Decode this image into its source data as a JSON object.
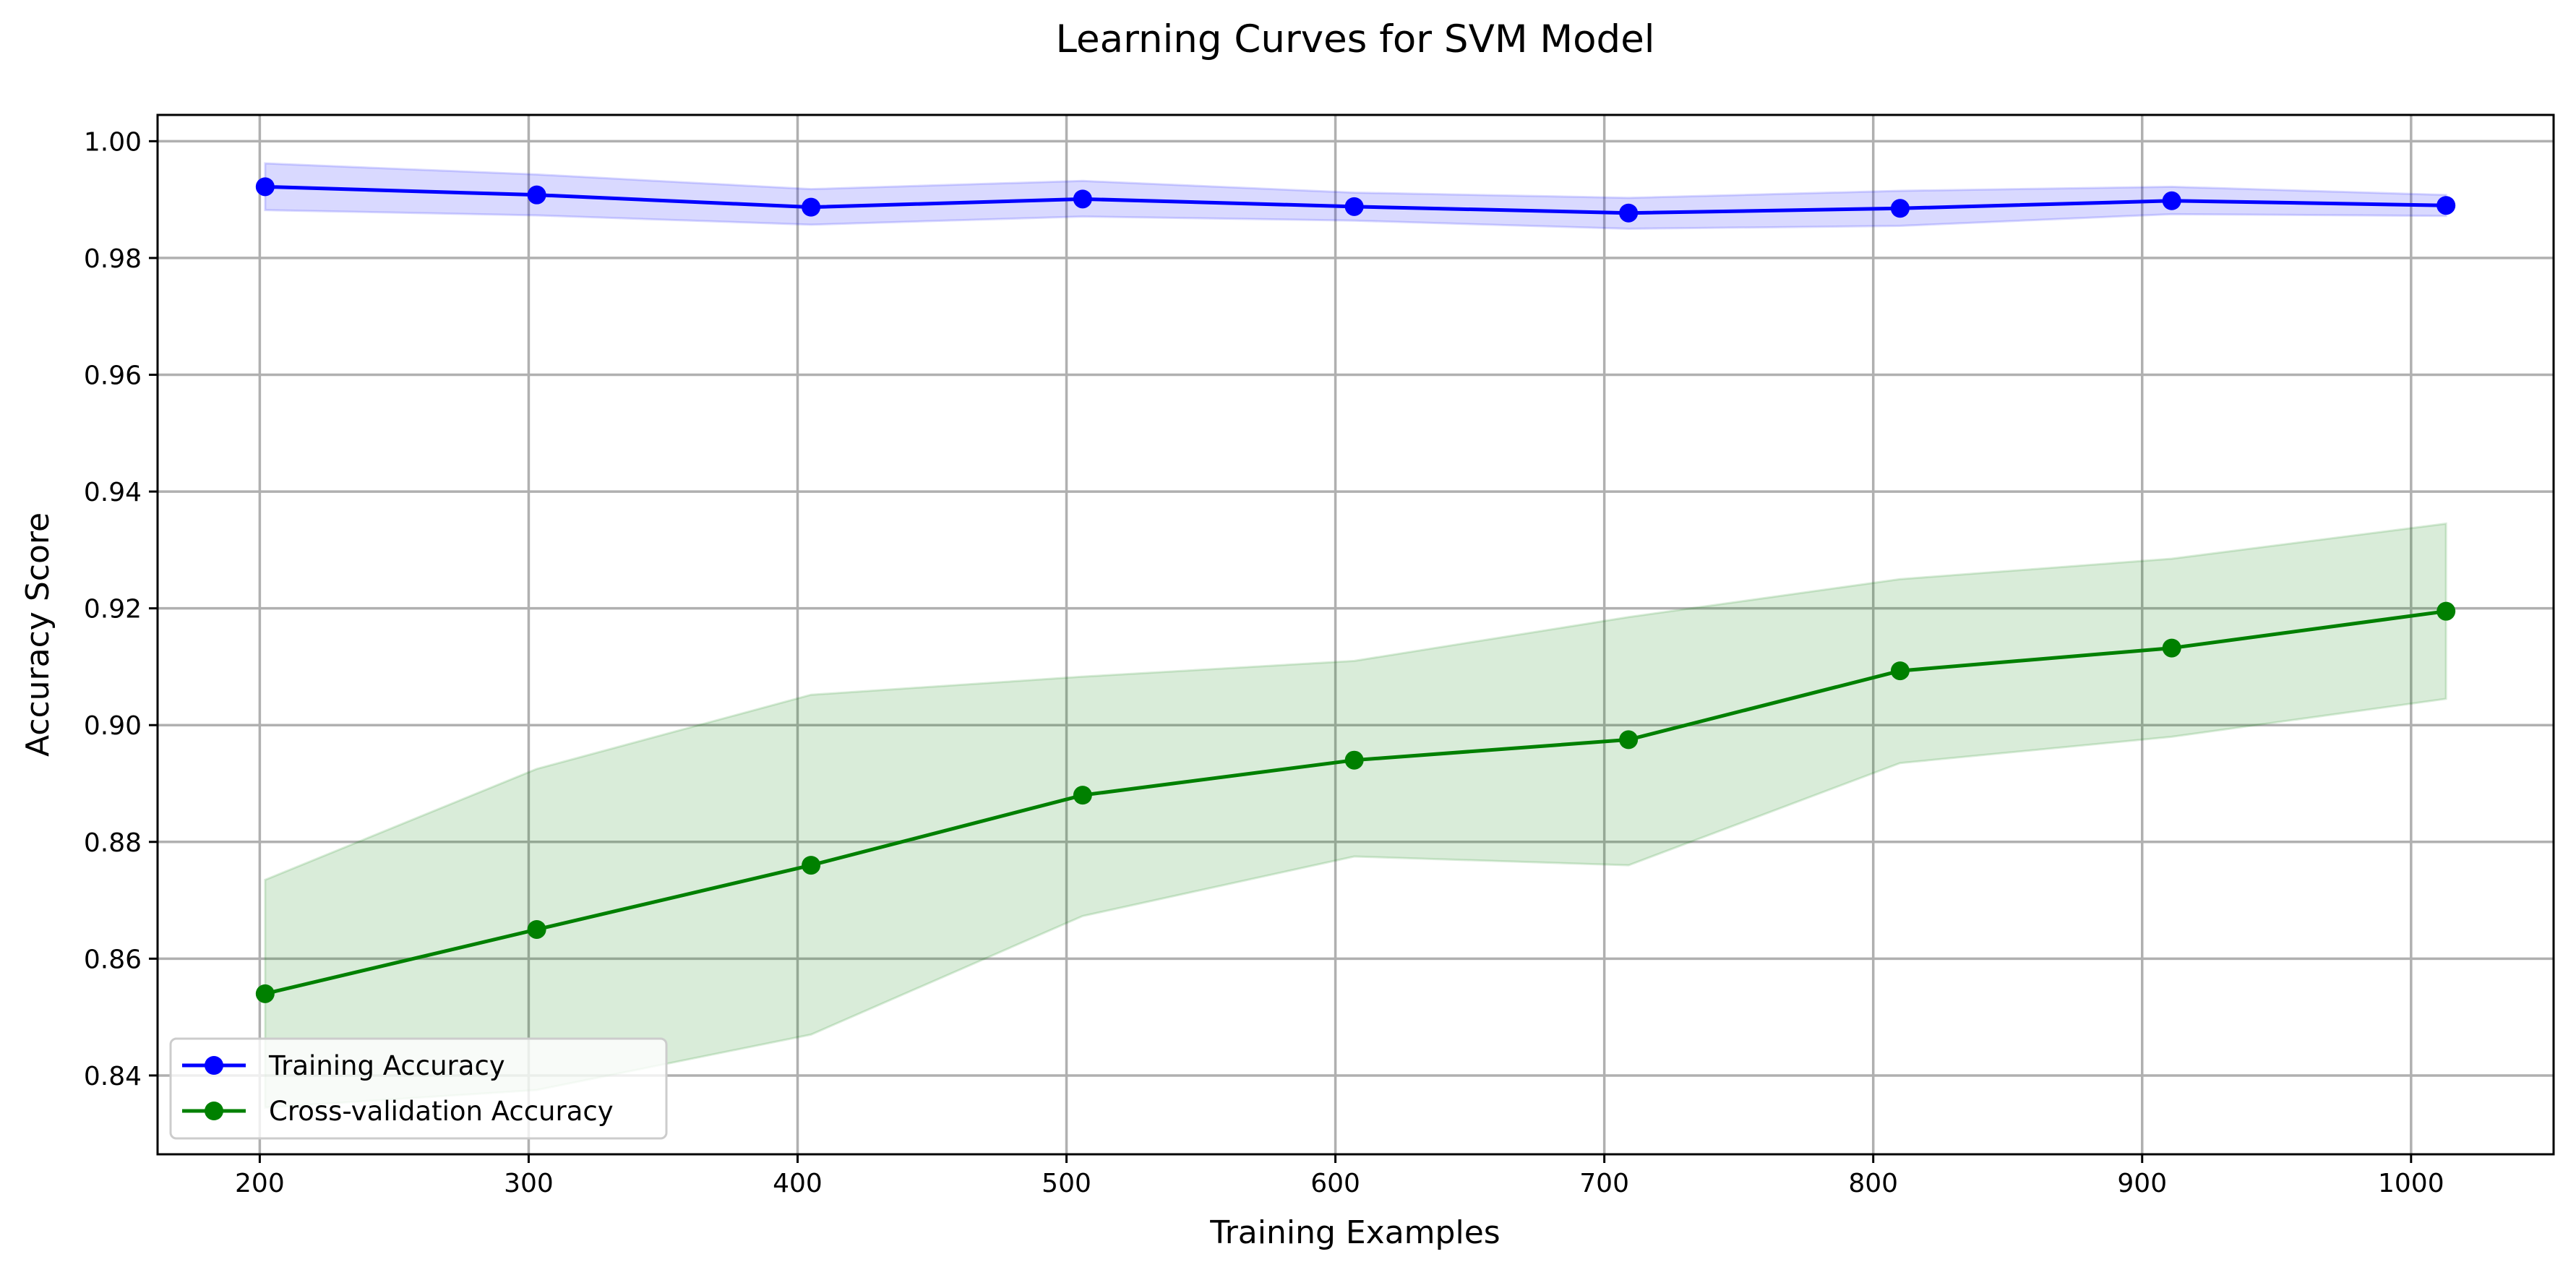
{
  "chart_data": {
    "type": "line",
    "title": "Learning Curves for SVM  Model",
    "xlabel": "Training Examples",
    "ylabel": "Accuracy Score",
    "xlim": [
      162,
      1053
    ],
    "ylim": [
      0.8265,
      1.0045
    ],
    "xticks": [
      200,
      300,
      400,
      500,
      600,
      700,
      800,
      900,
      1000
    ],
    "yticks": [
      0.84,
      0.86,
      0.88,
      0.9,
      0.92,
      0.94,
      0.96,
      0.98,
      1.0
    ],
    "ytick_labels": [
      "0.84",
      "0.86",
      "0.88",
      "0.90",
      "0.92",
      "0.94",
      "0.96",
      "0.98",
      "1.00"
    ],
    "grid": true,
    "legend_position": "lower left",
    "x": [
      202,
      303,
      405,
      506,
      607,
      709,
      810,
      911,
      1013
    ],
    "series": [
      {
        "name": "Training Accuracy",
        "color": "#0000ff",
        "values": [
          0.9922,
          0.9908,
          0.9887,
          0.9901,
          0.9888,
          0.9877,
          0.9885,
          0.9898,
          0.989
        ],
        "band_upper": [
          0.9962,
          0.9943,
          0.9918,
          0.9932,
          0.9912,
          0.9903,
          0.9915,
          0.9922,
          0.9908
        ],
        "band_lower": [
          0.9882,
          0.9873,
          0.9857,
          0.9871,
          0.9864,
          0.985,
          0.9855,
          0.9875,
          0.9872
        ],
        "band_color": "#0000ff",
        "band_opacity": 0.15
      },
      {
        "name": "Cross-validation Accuracy",
        "color": "#008000",
        "values": [
          0.854,
          0.865,
          0.876,
          0.888,
          0.894,
          0.8975,
          0.9093,
          0.9132,
          0.9195
        ],
        "band_upper": [
          0.8735,
          0.8925,
          0.9052,
          0.9083,
          0.911,
          0.9185,
          0.925,
          0.9285,
          0.9345
        ],
        "band_lower": [
          0.8345,
          0.8375,
          0.847,
          0.8673,
          0.8775,
          0.876,
          0.8935,
          0.898,
          0.9045
        ],
        "band_color": "#008000",
        "band_opacity": 0.15
      }
    ]
  }
}
